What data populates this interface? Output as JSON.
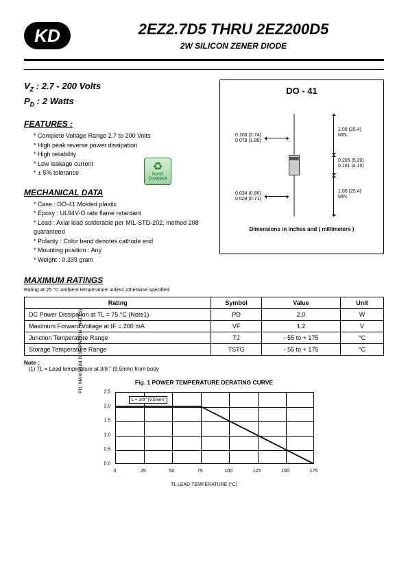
{
  "logo": "KD",
  "title": "2EZ2.7D5 THRU 2EZ200D5",
  "subtitle": "2W SILICON ZENER DIODE",
  "specs": {
    "vz_label": "V",
    "vz_sub": "Z",
    "vz_value": " : 2.7 - 200 Volts",
    "pd_label": "P",
    "pd_sub": "D",
    "pd_value": " : 2 Watts"
  },
  "features": {
    "heading": "FEATURES :",
    "items": [
      "Complete Voltage Range 2.7 to 200 Volts",
      "High peak reverse power dissipation",
      "High reliability",
      "Low leakage current",
      "± 5% tolerance"
    ]
  },
  "rohs": {
    "line1": "RoHS",
    "line2": "Compliant"
  },
  "mechanical": {
    "heading": "MECHANICAL DATA",
    "items": [
      "Case : DO-41 Molded plastic",
      "Epoxy : UL94V-O rate flame retardant",
      "Lead : Axial lead solderable per MIL-STD-202, method 208 guaranteed",
      "Polarity : Color band denotes cathode end",
      "Mounting position : Any",
      "Weight : 0.339 gram"
    ]
  },
  "package": {
    "title": "DO - 41",
    "dims": {
      "leadDia1": "0.108 (2.74)",
      "leadDia2": "0.078 (1.99)",
      "leadLen1": "1.00 (25.4)",
      "leadLen2": "MIN.",
      "bodyLen1": "0.205 (5.20)",
      "bodyLen2": "0.161 (4.10)",
      "bodyDia1": "0.034 (0.86)",
      "bodyDia2": "0.028 (0.71)"
    },
    "footer": "Dimensions in inches and ( millimeters )"
  },
  "ratings": {
    "heading": "MAXIMUM RATINGS",
    "sub": "Rating at 25 °C ambient temperature unless otherwise specified",
    "columns": [
      "Rating",
      "Symbol",
      "Value",
      "Unit"
    ],
    "rows": [
      [
        "DC Power Dissipation at TL = 75 °C (Note1)",
        "PD",
        "2.0",
        "W"
      ],
      [
        "Maximum Forward Voltage at IF = 200 mA",
        "VF",
        "1.2",
        "V"
      ],
      [
        "Junction Temperature Range",
        "TJ",
        "- 55 to + 175",
        "°C"
      ],
      [
        "Storage Temperature Range",
        "TSTG",
        "- 55 to + 175",
        "°C"
      ]
    ]
  },
  "note": {
    "heading": "Note :",
    "text": "(1) TL = Lead temperature at 3/8 \" (9.5mm) from body"
  },
  "chart": {
    "title": "Fig. 1  POWER TEMPERATURE DERATING CURVE",
    "type": "line",
    "y_label": "PD, MAXIMUM DISSIPATION (WATTS)",
    "x_label": "TL  LEAD TEMPERATURE (°C)",
    "xlim": [
      0,
      175
    ],
    "ylim": [
      0,
      2.5
    ],
    "xticks": [
      0,
      25,
      50,
      75,
      100,
      125,
      150,
      175
    ],
    "yticks": [
      0,
      0.5,
      1.0,
      1.5,
      2.0,
      2.5
    ],
    "legend": "L = 3/8\" (9.5mm)",
    "line_color": "#000000",
    "grid_color": "#000000",
    "background": "#ffffff",
    "points_x": [
      0,
      75,
      175
    ],
    "points_y": [
      2.0,
      2.0,
      0
    ]
  }
}
